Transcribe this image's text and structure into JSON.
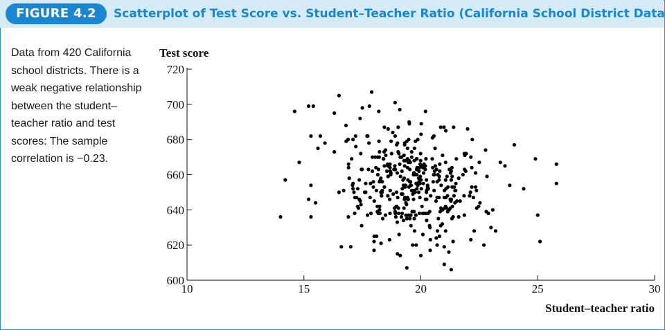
{
  "figure": {
    "badge": "FIGURE 4.2",
    "title": "Scatterplot of Test Score vs. Student–Teacher Ratio (California School District Data)",
    "caption": "Data from 420 California school districts. There is a weak negative relationship between the student–teacher ratio and test scores: The sample correlation is −0.23.",
    "accent_color": "#1b86cf",
    "header_bg": "#d6ebf8"
  },
  "chart_data": {
    "type": "scatter",
    "xlabel": "Student–teacher ratio",
    "ylabel": "Test score",
    "xlim": [
      10,
      30
    ],
    "ylim": [
      600,
      720
    ],
    "xticks": [
      10,
      15,
      20,
      25,
      30
    ],
    "yticks": [
      600,
      620,
      640,
      660,
      680,
      700,
      720
    ],
    "grid": false,
    "point_color": "#000000",
    "highlighted_points": [
      [
        14.0,
        636
      ],
      [
        14.2,
        657
      ],
      [
        14.6,
        696
      ],
      [
        14.8,
        667
      ],
      [
        15.2,
        699
      ],
      [
        15.3,
        682
      ],
      [
        15.3,
        654
      ],
      [
        15.4,
        699
      ],
      [
        15.2,
        646
      ],
      [
        15.3,
        636
      ],
      [
        15.5,
        644
      ],
      [
        15.6,
        675
      ],
      [
        15.7,
        682
      ],
      [
        15.9,
        678
      ],
      [
        16.3,
        695
      ],
      [
        16.3,
        673
      ],
      [
        16.5,
        705
      ],
      [
        16.5,
        650
      ],
      [
        16.6,
        619
      ],
      [
        16.7,
        651
      ],
      [
        16.8,
        688
      ],
      [
        16.9,
        636
      ],
      [
        17.0,
        619
      ],
      [
        17.1,
        680
      ],
      [
        17.1,
        652
      ],
      [
        17.3,
        642
      ],
      [
        17.4,
        692
      ],
      [
        17.5,
        698
      ],
      [
        17.6,
        650
      ],
      [
        17.7,
        682
      ],
      [
        17.8,
        699
      ],
      [
        17.9,
        707
      ],
      [
        18.0,
        617
      ],
      [
        18.2,
        696
      ],
      [
        18.3,
        621
      ],
      [
        18.6,
        659
      ],
      [
        18.8,
        684
      ],
      [
        18.9,
        701
      ],
      [
        19.1,
        697
      ],
      [
        19.4,
        607
      ],
      [
        19.5,
        690
      ],
      [
        19.8,
        620
      ],
      [
        20.0,
        614
      ],
      [
        20.2,
        696
      ],
      [
        20.4,
        617
      ],
      [
        20.5,
        681
      ],
      [
        20.8,
        625
      ],
      [
        21.0,
        609
      ],
      [
        21.2,
        616
      ],
      [
        21.3,
        606
      ],
      [
        21.4,
        687
      ],
      [
        21.8,
        660
      ],
      [
        22.0,
        686
      ],
      [
        22.2,
        680
      ],
      [
        22.5,
        667
      ],
      [
        22.7,
        620
      ],
      [
        22.8,
        639
      ],
      [
        23.0,
        630
      ],
      [
        23.2,
        628
      ],
      [
        23.4,
        667
      ],
      [
        23.6,
        665
      ],
      [
        23.8,
        654
      ],
      [
        24.0,
        677
      ],
      [
        24.4,
        652
      ],
      [
        24.9,
        669
      ],
      [
        25.0,
        637
      ],
      [
        25.1,
        622
      ],
      [
        25.8,
        666
      ],
      [
        25.8,
        655
      ]
    ],
    "n_points_note": "Data from 420 California school districts",
    "correlation": -0.23
  }
}
